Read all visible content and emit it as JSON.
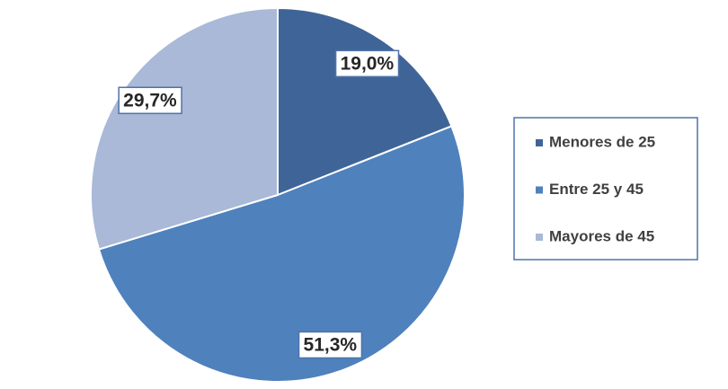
{
  "chart_data": {
    "type": "pie",
    "categories": [
      "Menores de 25",
      "Entre 25 y 45",
      "Mayores de 45"
    ],
    "values": [
      19.0,
      51.3,
      29.7
    ],
    "value_labels": [
      "19,0%",
      "51,3%",
      "29,7%"
    ],
    "colors": [
      "#3f6598",
      "#4f81bd",
      "#a9b9d7"
    ],
    "legend": "right"
  }
}
